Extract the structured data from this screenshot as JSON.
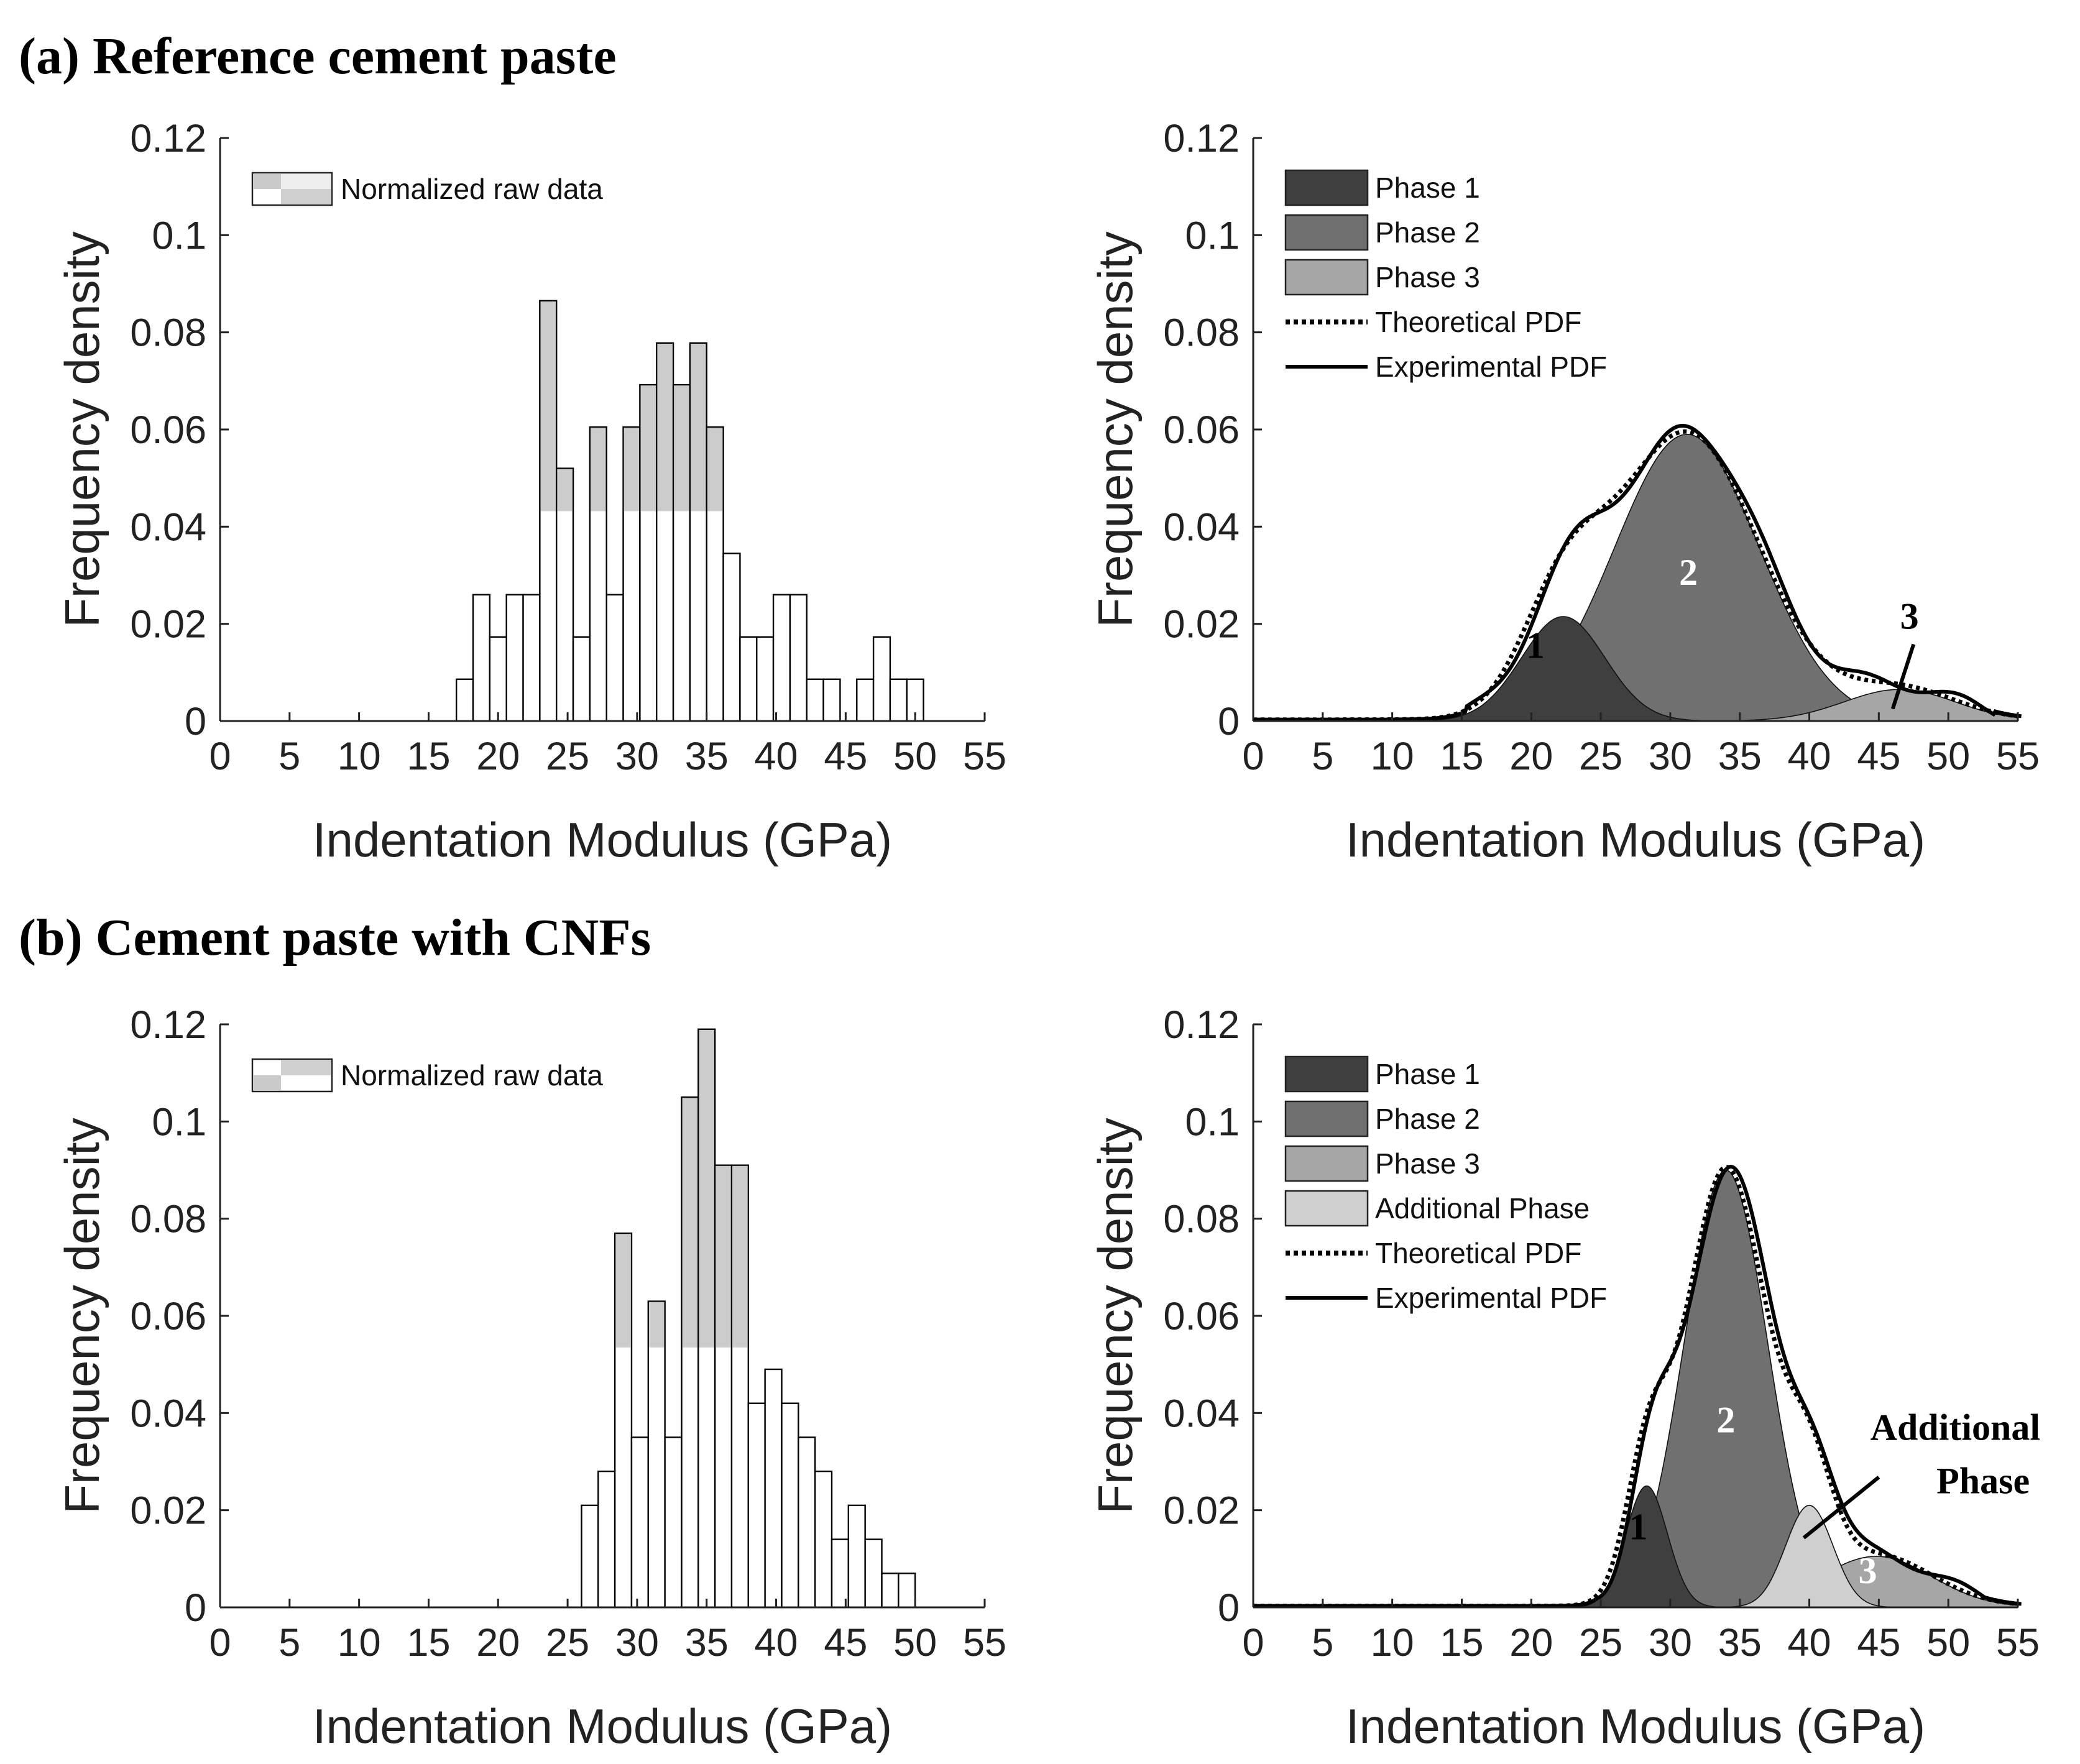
{
  "titles": {
    "a": "(a) Reference cement paste",
    "b": "(b) Cement paste with CNFs"
  },
  "colors": {
    "phase1": "#3f3f3f",
    "phase2": "#707070",
    "phase3": "#a6a6a6",
    "additional": "#cfcfcf",
    "histogram_highlight": "#cccccc",
    "line": "#000000"
  },
  "chart_data": [
    {
      "id": "a-left",
      "type": "bar",
      "title": "",
      "xlabel": "Indentation Modulus (GPa)",
      "ylabel": "Frequency density",
      "xlim": [
        0,
        55
      ],
      "ylim": [
        0,
        0.12
      ],
      "xticks": [
        0,
        5,
        10,
        15,
        20,
        25,
        30,
        35,
        40,
        45,
        50,
        55
      ],
      "yticks": [
        0,
        0.02,
        0.04,
        0.06,
        0.08,
        0.1,
        0.12
      ],
      "ytick_labels": [
        "0",
        "0.02",
        "0.04",
        "0.06",
        "0.08",
        "0.1",
        "0.12"
      ],
      "bin_width": 1.2,
      "bin_centers": [
        17.6,
        18.8,
        20.0,
        21.2,
        22.4,
        23.6,
        24.8,
        26.0,
        27.2,
        28.4,
        29.6,
        30.8,
        32.0,
        33.2,
        34.4,
        35.6,
        36.8,
        38.0,
        39.2,
        40.4,
        41.6,
        42.8,
        44.0,
        45.2,
        46.4,
        47.6,
        48.8,
        50.0
      ],
      "values": [
        0.0086,
        0.026,
        0.0173,
        0.026,
        0.026,
        0.0865,
        0.052,
        0.0173,
        0.0605,
        0.026,
        0.0605,
        0.0692,
        0.0778,
        0.0692,
        0.0778,
        0.0605,
        0.0345,
        0.0173,
        0.0173,
        0.026,
        0.026,
        0.0086,
        0.0086,
        0,
        0.0086,
        0.0173,
        0.0086,
        0.0086
      ],
      "highlight_level": 0.0432,
      "legend": [
        "Normalized raw data"
      ],
      "legend_position": "top-left"
    },
    {
      "id": "a-right",
      "type": "area",
      "title": "",
      "xlabel": "Indentation Modulus (GPa)",
      "ylabel": "Frequency density",
      "xlim": [
        0,
        55
      ],
      "ylim": [
        0,
        0.12
      ],
      "xticks": [
        0,
        5,
        10,
        15,
        20,
        25,
        30,
        35,
        40,
        45,
        50,
        55
      ],
      "yticks": [
        0,
        0.02,
        0.04,
        0.06,
        0.08,
        0.1,
        0.12
      ],
      "ytick_labels": [
        "0",
        "0.02",
        "0.04",
        "0.06",
        "0.08",
        "0.1",
        "0.12"
      ],
      "series": [
        {
          "name": "Phase 1",
          "kind": "phase",
          "mean": 22.3,
          "sd": 3.0,
          "peak": 0.0215,
          "color": "#3f3f3f",
          "label": "1"
        },
        {
          "name": "Phase 2",
          "kind": "phase",
          "mean": 31.2,
          "sd": 5.2,
          "peak": 0.059,
          "color": "#707070",
          "label": "2"
        },
        {
          "name": "Phase 3",
          "kind": "phase",
          "mean": 46.5,
          "sd": 4.0,
          "peak": 0.0065,
          "color": "#a6a6a6",
          "label": "3"
        },
        {
          "name": "Theoretical PDF",
          "kind": "dotted-line"
        },
        {
          "name": "Experimental PDF",
          "kind": "solid-line"
        }
      ],
      "annotations": [
        {
          "text": "1",
          "x": 20.3,
          "y": 0.013
        },
        {
          "text": "2",
          "x": 31.3,
          "y": 0.028
        },
        {
          "text": "3",
          "x": 47.2,
          "y": 0.019
        }
      ],
      "legend_position": "top-left"
    },
    {
      "id": "b-left",
      "type": "bar",
      "title": "",
      "xlabel": "Indentation Modulus (GPa)",
      "ylabel": "Frequency density",
      "xlim": [
        0,
        55
      ],
      "ylim": [
        0,
        0.12
      ],
      "xticks": [
        0,
        5,
        10,
        15,
        20,
        25,
        30,
        35,
        40,
        45,
        50,
        55
      ],
      "yticks": [
        0,
        0.02,
        0.04,
        0.06,
        0.08,
        0.1,
        0.12
      ],
      "ytick_labels": [
        "0",
        "0.02",
        "0.04",
        "0.06",
        "0.08",
        "0.1",
        "0.12"
      ],
      "bin_width": 1.2,
      "bin_centers": [
        26.6,
        27.8,
        29.0,
        30.2,
        31.4,
        32.6,
        33.8,
        35.0,
        36.2,
        37.4,
        38.6,
        39.8,
        41.0,
        42.2,
        43.4,
        44.6,
        45.8,
        47.0,
        48.2,
        49.4
      ],
      "values": [
        0.021,
        0.028,
        0.077,
        0.035,
        0.063,
        0.035,
        0.105,
        0.119,
        0.091,
        0.091,
        0.042,
        0.049,
        0.042,
        0.035,
        0.028,
        0.014,
        0.021,
        0.014,
        0.007,
        0.007
      ],
      "highlight_level": 0.0535,
      "legend": [
        "Normalized raw data"
      ],
      "legend_position": "top-left"
    },
    {
      "id": "b-right",
      "type": "area",
      "title": "",
      "xlabel": "Indentation Modulus (GPa)",
      "ylabel": "Frequency density",
      "xlim": [
        0,
        55
      ],
      "ylim": [
        0,
        0.12
      ],
      "xticks": [
        0,
        5,
        10,
        15,
        20,
        25,
        30,
        35,
        40,
        45,
        50,
        55
      ],
      "yticks": [
        0,
        0.02,
        0.04,
        0.06,
        0.08,
        0.1,
        0.12
      ],
      "ytick_labels": [
        "0",
        "0.02",
        "0.04",
        "0.06",
        "0.08",
        "0.1",
        "0.12"
      ],
      "series": [
        {
          "name": "Phase 1",
          "kind": "phase",
          "mean": 28.3,
          "sd": 1.5,
          "peak": 0.025,
          "color": "#3f3f3f",
          "label": "1"
        },
        {
          "name": "Phase 2",
          "kind": "phase",
          "mean": 34.0,
          "sd": 3.0,
          "peak": 0.09,
          "color": "#707070",
          "label": "2"
        },
        {
          "name": "Phase 3",
          "kind": "phase",
          "mean": 44.8,
          "sd": 4.0,
          "peak": 0.0105,
          "color": "#a6a6a6",
          "label": "3"
        },
        {
          "name": "Additional Phase",
          "kind": "phase",
          "mean": 40.0,
          "sd": 1.7,
          "peak": 0.021,
          "color": "#cfcfcf",
          "label": "Additional Phase"
        },
        {
          "name": "Theoretical PDF",
          "kind": "dotted-line"
        },
        {
          "name": "Experimental PDF",
          "kind": "solid-line"
        }
      ],
      "annotations": [
        {
          "text": "1",
          "x": 27.7,
          "y": 0.014
        },
        {
          "text": "2",
          "x": 34.0,
          "y": 0.036
        },
        {
          "text": "3",
          "x": 44.2,
          "y": 0.005
        },
        {
          "text": "Additional",
          "x": 50.5,
          "y": 0.0345
        },
        {
          "text": "Phase",
          "x": 52.5,
          "y": 0.0235
        }
      ],
      "legend_position": "top-left"
    }
  ]
}
